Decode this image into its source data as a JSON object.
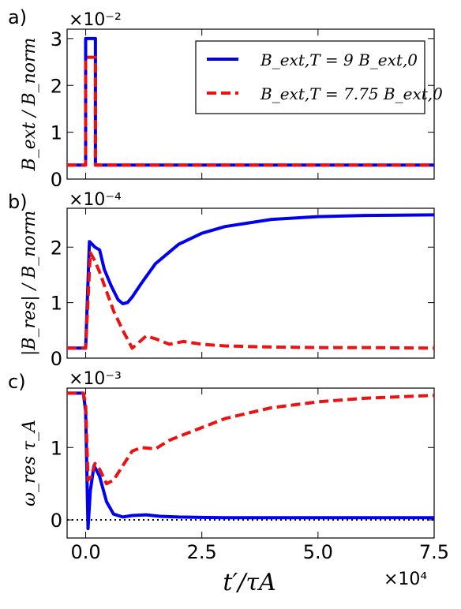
{
  "x_axis": {
    "label": "t′/τA",
    "multiplier": "×10⁴",
    "xlim": [
      -0.4,
      7.5
    ],
    "ticks": [
      0.0,
      2.5,
      5.0,
      7.5
    ],
    "tick_labels": [
      "0.0",
      "2.5",
      "5.0",
      "7.5"
    ]
  },
  "legend": {
    "entries": [
      "B_ext,T = 9 B_ext,0",
      "B_ext,T = 7.75 B_ext,0"
    ],
    "placement": "top-right"
  },
  "colors": {
    "series_blue": "#0000ee",
    "series_red": "#ee1111",
    "zero_line": "#000000"
  },
  "chart_data": [
    {
      "panel_label": "a)",
      "type": "line",
      "ylabel": "B_ext / B_norm",
      "y_multiplier": "×10⁻²",
      "ylim": [
        0,
        3.2
      ],
      "yticks": [
        0,
        1,
        2,
        3
      ],
      "ytick_labels": [
        "0",
        "1",
        "2",
        "3"
      ],
      "grid": false,
      "series": [
        {
          "name": "B_ext,T = 9 B_ext,0",
          "style": "solid",
          "x": [
            -0.4,
            0.0,
            0.0,
            0.01,
            0.2,
            0.21,
            0.21,
            7.5
          ],
          "y": [
            0.3,
            0.3,
            3.0,
            3.0,
            3.0,
            3.0,
            0.3,
            0.3
          ]
        },
        {
          "name": "B_ext,T = 7.75 B_ext,0",
          "style": "dashed",
          "x": [
            -0.4,
            0.0,
            0.0,
            0.01,
            0.2,
            0.21,
            0.21,
            7.5
          ],
          "y": [
            0.3,
            0.3,
            2.6,
            2.6,
            2.6,
            2.6,
            0.3,
            0.3
          ]
        }
      ]
    },
    {
      "panel_label": "b)",
      "type": "line",
      "ylabel": "|B_res| / B_norm",
      "y_multiplier": "×10⁻⁴",
      "ylim": [
        0,
        2.7
      ],
      "yticks": [
        0,
        1,
        2
      ],
      "ytick_labels": [
        "0",
        "1",
        "2"
      ],
      "grid": false,
      "series": [
        {
          "name": "B_ext,T = 9 B_ext,0",
          "style": "solid",
          "x": [
            -0.4,
            0.0,
            0.08,
            0.2,
            0.3,
            0.4,
            0.55,
            0.7,
            0.8,
            0.9,
            1.0,
            1.2,
            1.5,
            2.0,
            2.5,
            3.0,
            4.0,
            5.0,
            6.0,
            7.5
          ],
          "y": [
            0.18,
            0.18,
            2.1,
            2.0,
            1.95,
            1.6,
            1.3,
            1.05,
            0.98,
            1.0,
            1.1,
            1.35,
            1.7,
            2.05,
            2.25,
            2.37,
            2.5,
            2.55,
            2.57,
            2.58
          ]
        },
        {
          "name": "B_ext,T = 7.75 B_ext,0",
          "style": "dashed",
          "x": [
            -0.4,
            0.0,
            0.1,
            0.2,
            0.3,
            0.45,
            0.6,
            0.8,
            1.0,
            1.1,
            1.3,
            1.5,
            1.8,
            2.1,
            2.5,
            3.0,
            4.0,
            5.0,
            6.0,
            7.5
          ],
          "y": [
            0.18,
            0.18,
            1.9,
            1.75,
            1.55,
            1.2,
            0.85,
            0.5,
            0.18,
            0.25,
            0.4,
            0.35,
            0.25,
            0.3,
            0.25,
            0.22,
            0.2,
            0.19,
            0.19,
            0.18
          ]
        }
      ]
    },
    {
      "panel_label": "c)",
      "type": "line",
      "ylabel": "ω_res τ_A",
      "y_multiplier": "×10⁻³",
      "ylim": [
        -0.25,
        1.82
      ],
      "yticks": [
        0,
        1
      ],
      "ytick_labels": [
        "0",
        "1"
      ],
      "grid": false,
      "zero_line": {
        "y": 0,
        "style": "dotted"
      },
      "series": [
        {
          "name": "B_ext,T = 9 B_ext,0",
          "style": "solid",
          "x": [
            -0.4,
            -0.05,
            0.0,
            0.05,
            0.1,
            0.18,
            0.3,
            0.45,
            0.6,
            0.8,
            1.0,
            1.3,
            1.6,
            2.0,
            3.0,
            5.0,
            7.5
          ],
          "y": [
            1.75,
            1.75,
            1.5,
            -0.12,
            0.4,
            0.75,
            0.6,
            0.25,
            0.08,
            0.04,
            0.06,
            0.07,
            0.05,
            0.04,
            0.03,
            0.03,
            0.03
          ]
        },
        {
          "name": "B_ext,T = 7.75 B_ext,0",
          "style": "dashed",
          "x": [
            -0.4,
            -0.05,
            0.0,
            0.05,
            0.12,
            0.2,
            0.3,
            0.45,
            0.6,
            0.8,
            1.0,
            1.2,
            1.5,
            1.8,
            2.2,
            3.0,
            4.0,
            5.0,
            6.0,
            7.5
          ],
          "y": [
            1.75,
            1.75,
            1.6,
            0.55,
            0.6,
            0.78,
            0.7,
            0.5,
            0.55,
            0.75,
            0.95,
            1.0,
            0.98,
            1.1,
            1.2,
            1.4,
            1.55,
            1.63,
            1.68,
            1.72
          ]
        }
      ]
    }
  ]
}
